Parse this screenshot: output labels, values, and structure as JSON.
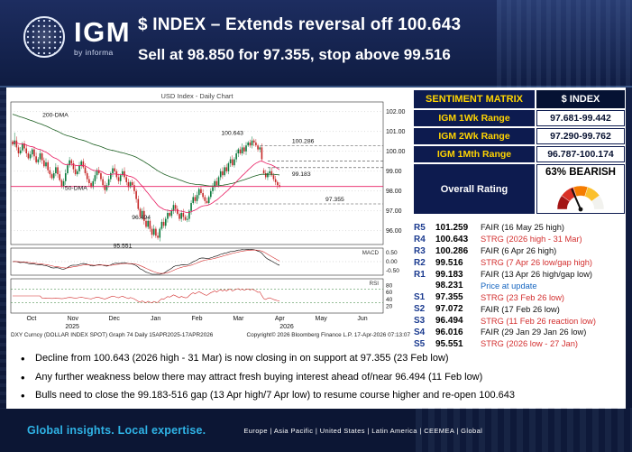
{
  "header": {
    "logo": {
      "brand": "IGM",
      "byline": "by informa"
    },
    "title_line1": "$ INDEX – Extends reversal off 100.643",
    "title_line2": "Sell at 98.850 for 97.355, stop above 99.516"
  },
  "chart_data": {
    "type": "candlestick",
    "title": "USD Index - Daily Chart",
    "ylim": [
      95.4,
      102.4
    ],
    "price_ticks": [
      102.0,
      101.0,
      100.0,
      99.0,
      98.0,
      97.0,
      96.0
    ],
    "months": [
      "Oct",
      "Nov",
      "Dec",
      "Jan",
      "Feb",
      "Mar",
      "Apr",
      "May",
      "Jun"
    ],
    "years": [
      {
        "text": "2025",
        "fx": 0.165
      },
      {
        "text": "2026",
        "fx": 0.741
      }
    ],
    "closes": [
      100.35,
      100.55,
      100.2,
      99.9,
      100.05,
      100.4,
      100.15,
      99.9,
      99.65,
      99.85,
      100.1,
      99.75,
      99.45,
      99.6,
      99.9,
      99.55,
      99.25,
      99.45,
      99.05,
      98.85,
      98.65,
      98.9,
      99.2,
      98.85,
      98.55,
      98.25,
      98.5,
      98.9,
      99.3,
      99.55,
      99.4,
      99.1,
      98.85,
      99.0,
      99.3,
      99.5,
      99.2,
      98.9,
      98.6,
      98.4,
      98.2,
      98.5,
      98.8,
      99.05,
      98.9,
      98.6,
      98.3,
      98.05,
      98.3,
      98.6,
      98.9,
      99.15,
      99.0,
      98.7,
      98.5,
      98.8,
      99.0,
      98.7,
      98.45,
      98.2,
      98.45,
      98.3,
      98.0,
      97.6,
      97.1,
      96.7,
      97.0,
      96.5,
      96.2,
      96.5,
      96.1,
      95.8,
      96.1,
      95.75,
      95.65,
      96.1,
      96.45,
      96.25,
      96.6,
      96.9,
      96.75,
      97.0,
      97.3,
      97.1,
      96.85,
      96.6,
      96.9,
      96.7,
      96.55,
      96.6,
      97.0,
      97.4,
      97.7,
      97.5,
      97.8,
      98.1,
      97.9,
      97.7,
      97.5,
      97.4,
      97.7,
      98.0,
      98.2,
      98.5,
      98.3,
      98.7,
      99.0,
      98.8,
      99.2,
      99.0,
      99.4,
      99.6,
      99.3,
      99.6,
      99.9,
      100.1,
      99.9,
      100.2,
      100.0,
      100.3,
      100.45,
      100.3,
      100.55,
      100.45,
      100.3,
      100.1,
      100.2,
      99.6,
      98.9,
      98.7,
      98.9,
      99.0,
      98.8,
      98.6,
      98.45,
      98.3,
      98.231
    ],
    "anchors": {
      "1": {
        "high": 100.95
      },
      "74": {
        "low": 95.551
      },
      "76": {
        "low": 96.016
      },
      "88": {
        "low": 96.494
      },
      "99": {
        "low": 97.355
      },
      "123": {
        "high": 100.643
      },
      "126": {
        "high": 100.286
      },
      "127": {
        "low": 99.516
      },
      "128": {
        "open": 99.05
      },
      "131": {
        "high": 99.183
      }
    },
    "key_levels": {
      "high_2026": 100.643,
      "low_2026": 95.551,
      "price_at_update": 98.231
    },
    "lines": [
      {
        "price": 100.286,
        "from_fx": 0.67,
        "style": "dash"
      },
      {
        "price": 99.516,
        "from_fx": 0.69,
        "style": "dash"
      },
      {
        "price": 99.183,
        "from_fx": 0.69,
        "style": "dash"
      },
      {
        "price": 98.231,
        "from_fx": 0.0,
        "style": "pink"
      },
      {
        "price": 97.355,
        "from_fx": 0.55,
        "style": "dash"
      }
    ],
    "labels": [
      {
        "text": "100.643",
        "price": 100.643,
        "fx": 0.565,
        "dy": -4
      },
      {
        "text": "100.286",
        "price": 100.286,
        "fx": 0.755,
        "dy": -3
      },
      {
        "text": "99.183",
        "price": 99.183,
        "fx": 0.755,
        "dy": 9
      },
      {
        "text": "97.355",
        "price": 97.355,
        "fx": 0.845,
        "dy": -3
      },
      {
        "text": "96.494",
        "price": 96.494,
        "fx": 0.325,
        "dy": -2
      },
      {
        "text": "95.551",
        "price": 95.551,
        "fx": 0.275,
        "dy": 9
      },
      {
        "text": "200-DMA",
        "price": 101.75,
        "fx": 0.085,
        "dy": 0
      },
      {
        "text": "50-DMA",
        "price": 98.05,
        "fx": 0.145,
        "dy": 0
      }
    ],
    "overlays": [
      "200-DMA",
      "50-DMA"
    ],
    "macd": {
      "label": "MACD",
      "ticks": [
        "0.50",
        "0.00",
        "-0.50"
      ]
    },
    "rsi": {
      "label": "RSI",
      "ticks": [
        "80",
        "60",
        "40",
        "20"
      ]
    },
    "caption_left": "DXY Curncy (DOLLAR INDEX SPOT) Graph 74 Daily 15APR2025-17APR2026",
    "caption_right": "Copyright© 2026 Bloomberg Finance L.P.  17-Apr-2026 07:13:07",
    "colors": {
      "up": "#0a7a3c",
      "down": "#c62828",
      "ma_slow": "#1b5e20",
      "ma_fast": "#e91e63"
    }
  },
  "sentiment": {
    "header_left": "SENTIMENT MATRIX",
    "header_right": "$ INDEX",
    "rows": [
      {
        "label": "IGM 1Wk Range",
        "value": "97.681-99.442"
      },
      {
        "label": "IGM 2Wk Range",
        "value": "97.290-99.762"
      },
      {
        "label": "IGM 1Mth Range",
        "value": "96.787-100.174"
      }
    ],
    "overall_label": "Overall Rating",
    "overall_value": "63% BEARISH",
    "overall_pct": 63,
    "gauge_colors": [
      "#a31515",
      "#d93025",
      "#f57c00",
      "#fbc02d",
      "#f2f2ee"
    ]
  },
  "levels_table": {
    "rows": [
      {
        "tag": "R5",
        "value": "101.259",
        "note": "FAIR (16 May 25 high)",
        "tone": "fair"
      },
      {
        "tag": "R4",
        "value": "100.643",
        "note": "STRG (2026 high - 31 Mar)",
        "tone": "strong"
      },
      {
        "tag": "R3",
        "value": "100.286",
        "note": "FAIR (6 Apr 26 high)",
        "tone": "fair"
      },
      {
        "tag": "R2",
        "value": "99.516",
        "note": "STRG (7 Apr 26 low/gap high)",
        "tone": "strong"
      },
      {
        "tag": "R1",
        "value": "99.183",
        "note": "FAIR (13 Apr 26 high/gap low)",
        "tone": "fair"
      },
      {
        "tag": "",
        "value": "98.231",
        "note": "Price at update",
        "tone": "price"
      },
      {
        "tag": "S1",
        "value": "97.355",
        "note": "STRG (23 Feb 26 low)",
        "tone": "strong"
      },
      {
        "tag": "S2",
        "value": "97.072",
        "note": "FAIR (17 Feb 26 low)",
        "tone": "fair"
      },
      {
        "tag": "S3",
        "value": "96.494",
        "note": "STRG (11 Feb 26 reaction low)",
        "tone": "strong"
      },
      {
        "tag": "S4",
        "value": "96.016",
        "note": "FAIR (29 Jan 29 Jan 26 low)",
        "tone": "fair"
      },
      {
        "tag": "S5",
        "value": "95.551",
        "note": "STRG (2026 low - 27 Jan)",
        "tone": "strong"
      }
    ]
  },
  "bullets": [
    "Decline from 100.643 (2026 high - 31 Mar) is now closing in on support at 97.355 (23 Feb low)",
    "Any further weakness below there may attract fresh buying interest ahead of/near 96.494 (11 Feb low)",
    "Bulls need to close the 99.183-516 gap (13 Apr high/7 Apr low) to resume course higher and re-open 100.643"
  ],
  "footer": {
    "tagline": "Global insights. Local expertise.",
    "regions": "Europe | Asia Pacific | United States | Latin America | CEEMEA | Global"
  }
}
